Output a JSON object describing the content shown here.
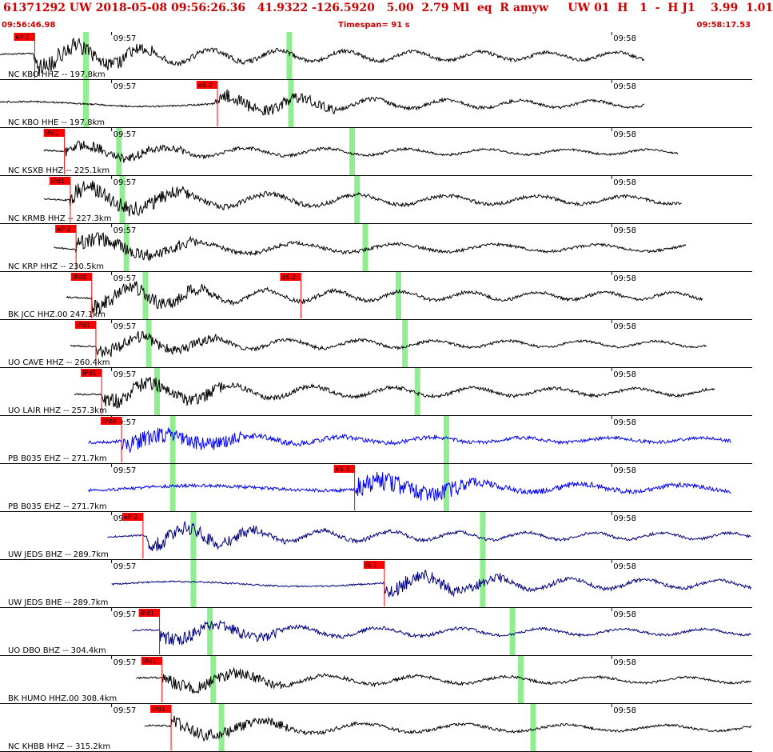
{
  "header": {
    "title": "61371292 UW 2018-05-08 09:56:26.36   41.9322 -126.5920   5.00  2.79 Ml  eq  R amyw     UW 01  H   1  -  H J1    3.99  1.01",
    "start_time": "09:56:46.98",
    "timespan": "Timespan=  91 s",
    "end_time": "09:58:17.53"
  },
  "colors": {
    "header_text": "#cc0000",
    "pick_flag": "#ff0000",
    "theoretical_marker": "#90ee90",
    "trace_black": "#000000",
    "trace_blue": "#0000ff",
    "trace_navy": "#000080"
  },
  "chart_data": {
    "type": "line",
    "description_of_axes": "seismogram panels; x in seconds after 09:56:46.98",
    "x_range": [
      0,
      91
    ],
    "time_ticks": [
      {
        "label": "09:57",
        "x": 13.5
      },
      {
        "label": "09:58",
        "x": 74.0
      }
    ],
    "series": [
      {
        "name": "NC KBO HHZ -- 197.8km",
        "color": "trace_black",
        "trace_start": 0.0,
        "trace_end": 78.0,
        "amplitude": 0.55,
        "burst_at": 4.0,
        "picks": [
          {
            "label": "eP 2",
            "x": 4.2
          }
        ],
        "markers": [
          10.4,
          35.0
        ]
      },
      {
        "name": "NC KBO HHE -- 197.8km",
        "color": "trace_black",
        "trace_start": 0.0,
        "trace_end": 78.0,
        "amplitude": 0.4,
        "burst_at": 26.0,
        "picks": [
          {
            "label": "eS 2",
            "x": 26.3
          }
        ],
        "markers": [
          10.4,
          35.2
        ]
      },
      {
        "name": "NC KSXB HHZ -- 225.1km",
        "color": "trace_black",
        "trace_start": 5.3,
        "trace_end": 82.0,
        "amplitude": 0.35,
        "burst_at": 7.8,
        "picks": [
          {
            "label": "iPd1",
            "x": 7.8
          }
        ],
        "markers": [
          14.4,
          42.6
        ]
      },
      {
        "name": "NC KRMB HHZ -- 227.3km",
        "color": "trace_black",
        "trace_start": 5.3,
        "trace_end": 82.5,
        "amplitude": 0.55,
        "burst_at": 8.4,
        "picks": [
          {
            "label": "iPd1",
            "x": 8.5
          }
        ],
        "markers": [
          14.8,
          43.2
        ]
      },
      {
        "name": "NC KRP HHZ -- 230.5km",
        "color": "trace_black",
        "trace_start": 6.5,
        "trace_end": 83.0,
        "amplitude": 0.45,
        "burst_at": 9.2,
        "picks": [
          {
            "label": "eP 2",
            "x": 9.2
          }
        ],
        "markers": [
          15.3,
          44.2
        ]
      },
      {
        "name": "BK JCC HHZ.00 247.1km",
        "color": "trace_black",
        "trace_start": 8.0,
        "trace_end": 85.0,
        "amplitude": 0.5,
        "burst_at": 11.1,
        "picks": [
          {
            "label": "iPd0",
            "x": 11.1
          },
          {
            "label": "eS 2",
            "x": 36.4
          }
        ],
        "markers": [
          17.6,
          48.2
        ]
      },
      {
        "name": "UO CAVE HHZ -- 260.4km",
        "color": "trace_black",
        "trace_start": 8.5,
        "trace_end": 85.5,
        "amplitude": 0.4,
        "burst_at": 11.6,
        "picks": [
          {
            "label": "iPd1",
            "x": 11.6
          }
        ],
        "markers": [
          18.0,
          49.0
        ]
      },
      {
        "name": "UO LAIR HHZ -- 257.3km",
        "color": "trace_black",
        "trace_start": 9.0,
        "trace_end": 86.5,
        "amplitude": 0.5,
        "burst_at": 12.3,
        "picks": [
          {
            "label": "iPd1",
            "x": 12.3
          }
        ],
        "markers": [
          19.0,
          50.5
        ]
      },
      {
        "name": "PB B035 EHZ -- 271.7km",
        "color": "trace_blue",
        "trace_start": 10.7,
        "trace_end": 88.5,
        "amplitude": 0.3,
        "burst_at": 14.7,
        "picks": [
          {
            "label": "iPd0",
            "x": 14.7
          }
        ],
        "markers": [
          20.9,
          54.0
        ]
      },
      {
        "name": "PB B035 EHZ -- 271.7km",
        "color": "trace_blue",
        "trace_start": 10.7,
        "trace_end": 88.5,
        "amplitude": 0.35,
        "burst_at": 43.0,
        "picks": [
          {
            "label": "eS 3",
            "x": 42.9
          }
        ],
        "markers": [
          20.9,
          54.0
        ]
      },
      {
        "name": "UW JEDS BHZ -- 289.7km",
        "color": "trace_navy",
        "trace_start": 13.0,
        "trace_end": 91.0,
        "amplitude": 0.45,
        "burst_at": 17.3,
        "picks": [
          {
            "label": "eP 2",
            "x": 17.3
          }
        ],
        "markers": [
          23.4,
          58.4
        ]
      },
      {
        "name": "UW JEDS BHE -- 289.7km",
        "color": "trace_navy",
        "trace_start": 13.5,
        "trace_end": 91.0,
        "amplitude": 0.45,
        "burst_at": 46.5,
        "picks": [
          {
            "label": "iS 1",
            "x": 46.5
          }
        ],
        "markers": [
          23.4,
          58.4
        ]
      },
      {
        "name": "UO DBO BHZ -- 304.4km",
        "color": "trace_navy",
        "trace_start": 16.0,
        "trace_end": 92.0,
        "amplitude": 0.4,
        "burst_at": 19.3,
        "picks": [
          {
            "label": "iPd1",
            "x": 19.3
          }
        ],
        "markers": [
          25.4,
          62.0
        ]
      },
      {
        "name": "BK HUMO HHZ.00 308.4km",
        "color": "trace_black",
        "trace_start": 16.5,
        "trace_end": 92.0,
        "amplitude": 0.4,
        "burst_at": 19.6,
        "picks": [
          {
            "label": "iPd1",
            "x": 19.6
          }
        ],
        "markers": [
          25.8,
          63.0
        ]
      },
      {
        "name": "NC KHBB HHZ -- 315.2km",
        "color": "trace_black",
        "trace_start": 17.5,
        "trace_end": 92.0,
        "amplitude": 0.4,
        "burst_at": 20.7,
        "picks": [
          {
            "label": "iPd1",
            "x": 20.7
          }
        ],
        "markers": [
          26.8,
          64.5
        ]
      }
    ]
  }
}
